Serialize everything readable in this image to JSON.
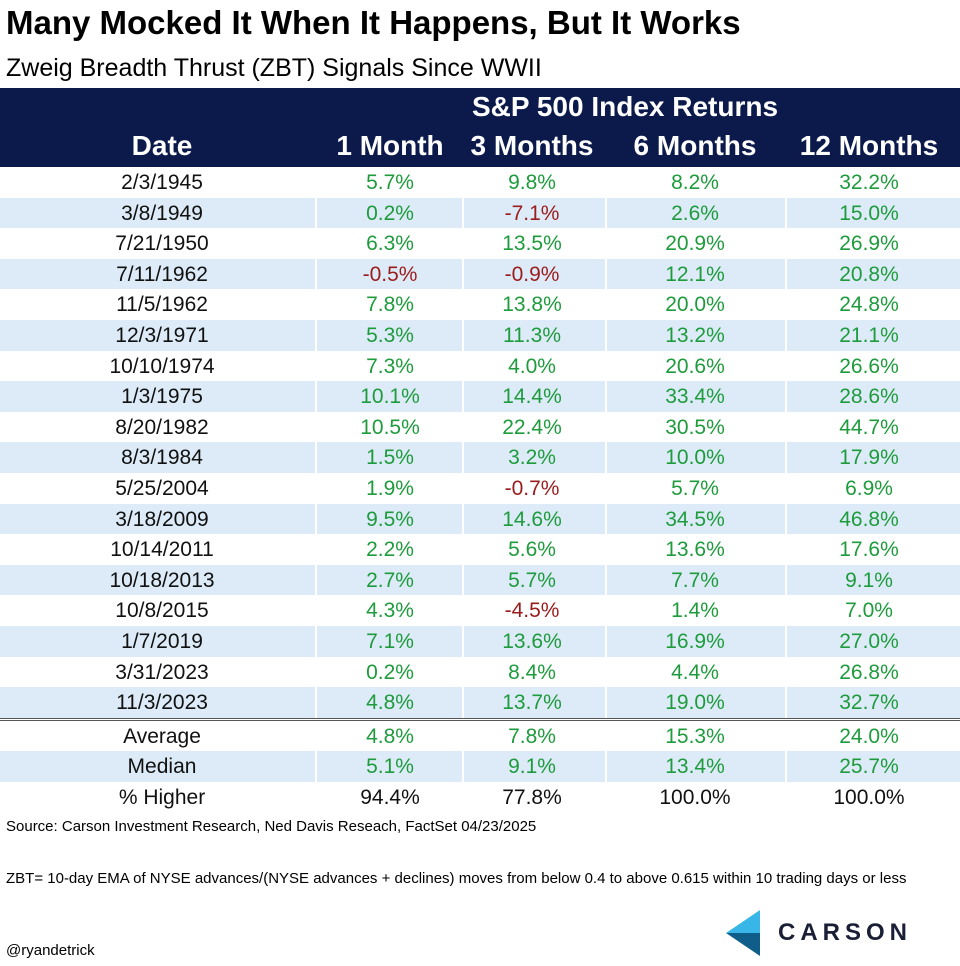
{
  "title": "Many Mocked It When It Happens, But It Works",
  "subtitle": "Zweig Breadth Thrust (ZBT) Signals Since WWII",
  "colors": {
    "header_bg": "#0b1a4b",
    "row_alt": "#dcebf7",
    "positive": "#1e9b3c",
    "negative": "#9b1c1c"
  },
  "chart_data": {
    "type": "table",
    "group_header": "S&P 500 Index Returns",
    "columns": [
      "Date",
      "1 Month",
      "3 Months",
      "6 Months",
      "12 Months"
    ],
    "rows": [
      [
        "2/3/1945",
        "5.7%",
        "9.8%",
        "8.2%",
        "32.2%"
      ],
      [
        "3/8/1949",
        "0.2%",
        "-7.1%",
        "2.6%",
        "15.0%"
      ],
      [
        "7/21/1950",
        "6.3%",
        "13.5%",
        "20.9%",
        "26.9%"
      ],
      [
        "7/11/1962",
        "-0.5%",
        "-0.9%",
        "12.1%",
        "20.8%"
      ],
      [
        "11/5/1962",
        "7.8%",
        "13.8%",
        "20.0%",
        "24.8%"
      ],
      [
        "12/3/1971",
        "5.3%",
        "11.3%",
        "13.2%",
        "21.1%"
      ],
      [
        "10/10/1974",
        "7.3%",
        "4.0%",
        "20.6%",
        "26.6%"
      ],
      [
        "1/3/1975",
        "10.1%",
        "14.4%",
        "33.4%",
        "28.6%"
      ],
      [
        "8/20/1982",
        "10.5%",
        "22.4%",
        "30.5%",
        "44.7%"
      ],
      [
        "8/3/1984",
        "1.5%",
        "3.2%",
        "10.0%",
        "17.9%"
      ],
      [
        "5/25/2004",
        "1.9%",
        "-0.7%",
        "5.7%",
        "6.9%"
      ],
      [
        "3/18/2009",
        "9.5%",
        "14.6%",
        "34.5%",
        "46.8%"
      ],
      [
        "10/14/2011",
        "2.2%",
        "5.6%",
        "13.6%",
        "17.6%"
      ],
      [
        "10/18/2013",
        "2.7%",
        "5.7%",
        "7.7%",
        "9.1%"
      ],
      [
        "10/8/2015",
        "4.3%",
        "-4.5%",
        "1.4%",
        "7.0%"
      ],
      [
        "1/7/2019",
        "7.1%",
        "13.6%",
        "16.9%",
        "27.0%"
      ],
      [
        "3/31/2023",
        "0.2%",
        "8.4%",
        "4.4%",
        "26.8%"
      ],
      [
        "11/3/2023",
        "4.8%",
        "13.7%",
        "19.0%",
        "32.7%"
      ]
    ],
    "summary_rows": [
      [
        "Average",
        "4.8%",
        "7.8%",
        "15.3%",
        "24.0%"
      ],
      [
        "Median",
        "5.1%",
        "9.1%",
        "13.4%",
        "25.7%"
      ],
      [
        "% Higher",
        "94.4%",
        "77.8%",
        "100.0%",
        "100.0%"
      ]
    ]
  },
  "footer": {
    "source": "Source: Carson Investment Research, Ned Davis Reseach, FactSet 04/23/2025",
    "note": "ZBT= 10-day EMA of NYSE advances/(NYSE advances + declines) moves from below 0.4 to above 0.615 within 10 trading days or less",
    "handle": "@ryandetrick"
  },
  "logo": {
    "text": "CARSON",
    "icon": "carson-chevron-icon"
  }
}
